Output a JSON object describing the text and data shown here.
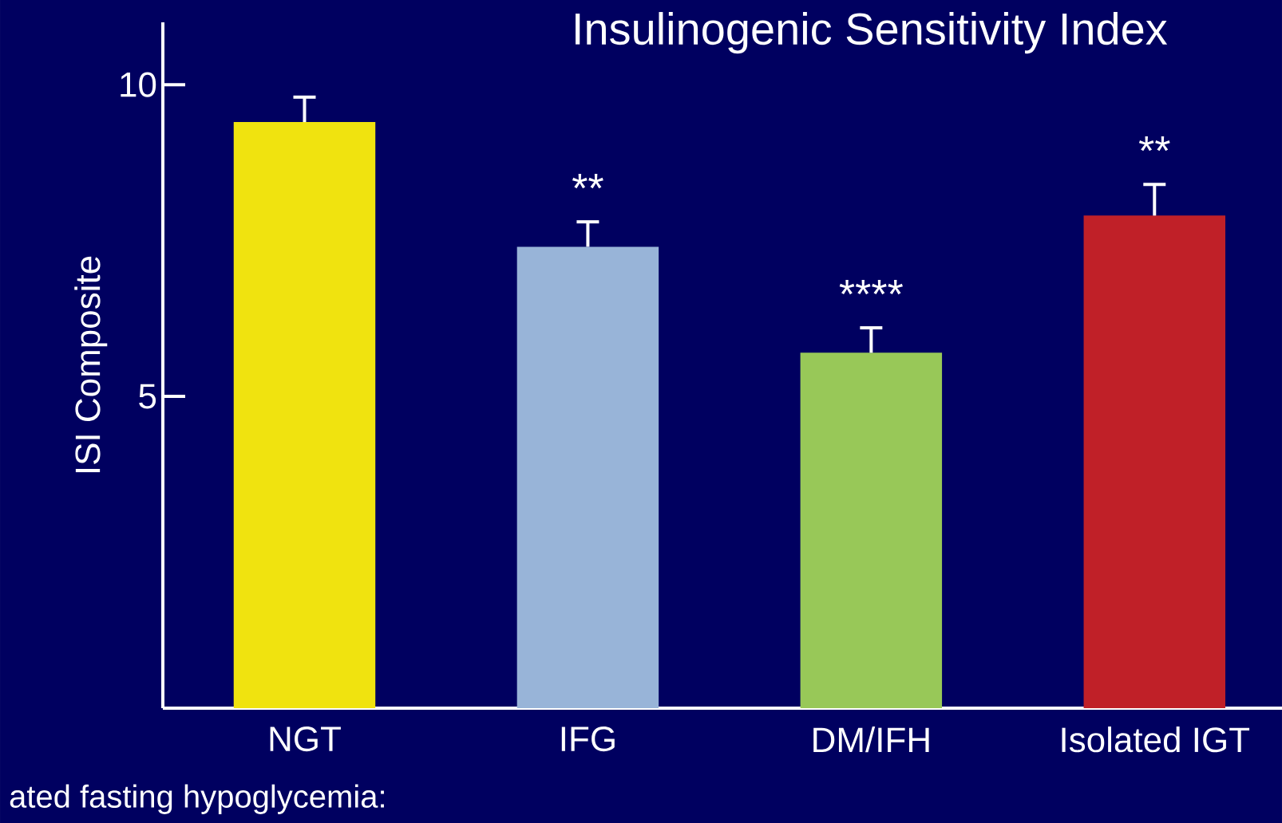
{
  "chart_data": {
    "type": "bar",
    "title": "Insulinogenic Sensitivity Index",
    "ylabel": "ISI Composite",
    "categories": [
      "NGT",
      "IFG",
      "DM/IFH",
      "Isolated IGT"
    ],
    "values": [
      9.4,
      7.4,
      5.7,
      7.9
    ],
    "errors": [
      0.4,
      0.4,
      0.4,
      0.5
    ],
    "colors": [
      "#f0e30f",
      "#98b4d8",
      "#98c858",
      "#c02028"
    ],
    "ylim": [
      0,
      11
    ],
    "yticks": [
      5,
      10
    ],
    "annotations": [
      "**",
      "****",
      "**",
      "ated fasting hypoglycemia:"
    ]
  }
}
